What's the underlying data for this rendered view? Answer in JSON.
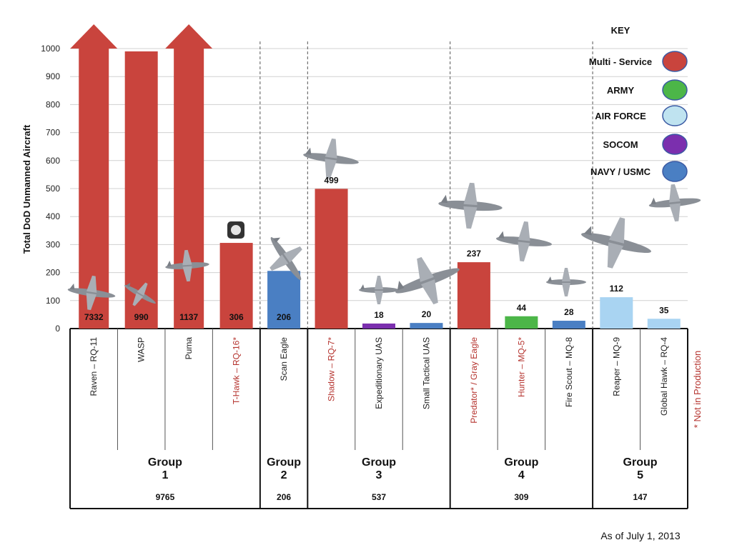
{
  "chart_data": {
    "type": "bar",
    "title": "",
    "ylabel": "Total DoD Unmanned Aircraft",
    "ylim": [
      0,
      1000
    ],
    "yticks": [
      0,
      100,
      200,
      300,
      400,
      500,
      600,
      700,
      800,
      900,
      1000
    ],
    "grid": true,
    "categories": [
      {
        "name": "Raven – RQ-11",
        "value": 7332,
        "label": "7332",
        "color": "multi",
        "not_in_production": false,
        "overflow": true
      },
      {
        "name": "WASP",
        "value": 990,
        "label": "990",
        "color": "multi",
        "not_in_production": false,
        "overflow": false
      },
      {
        "name": "Puma",
        "value": 1137,
        "label": "1137",
        "color": "multi",
        "not_in_production": false,
        "overflow": true
      },
      {
        "name": "T-Hawk – RQ-16*",
        "value": 306,
        "label": "306",
        "color": "multi",
        "not_in_production": true,
        "overflow": false
      },
      {
        "name": "Scan Eagle",
        "value": 206,
        "label": "206",
        "color": "navy",
        "not_in_production": false,
        "overflow": false
      },
      {
        "name": "Shadow – RQ-7*",
        "value": 499,
        "label": "499",
        "color": "multi",
        "not_in_production": true,
        "overflow": false
      },
      {
        "name": "Expeditionary UAS",
        "value": 18,
        "label": "18",
        "color": "socom",
        "not_in_production": false,
        "overflow": false
      },
      {
        "name": "Small Tactical UAS",
        "value": 20,
        "label": "20",
        "color": "navy",
        "not_in_production": false,
        "overflow": false
      },
      {
        "name": "Predator* / Gray Eagle",
        "value": 237,
        "label": "237",
        "color": "multi",
        "not_in_production": true,
        "overflow": false
      },
      {
        "name": "Hunter – MQ-5*",
        "value": 44,
        "label": "44",
        "color": "army",
        "not_in_production": true,
        "overflow": false
      },
      {
        "name": "Fire Scout – MQ-8",
        "value": 28,
        "label": "28",
        "color": "navy",
        "not_in_production": false,
        "overflow": false
      },
      {
        "name": "Reaper – MQ-9",
        "value": 112,
        "label": "112",
        "color": "airforce",
        "not_in_production": false,
        "overflow": false
      },
      {
        "name": "Global Hawk – RQ-4",
        "value": 35,
        "label": "35",
        "color": "airforce",
        "not_in_production": false,
        "overflow": false
      }
    ],
    "groups": [
      {
        "label": "Group",
        "number": "1",
        "total": "9765",
        "start": 0,
        "end": 3
      },
      {
        "label": "Group",
        "number": "2",
        "total": "206",
        "start": 4,
        "end": 4
      },
      {
        "label": "Group",
        "number": "3",
        "total": "537",
        "start": 5,
        "end": 7
      },
      {
        "label": "Group",
        "number": "4",
        "total": "309",
        "start": 8,
        "end": 10
      },
      {
        "label": "Group",
        "number": "5",
        "total": "147",
        "start": 11,
        "end": 12
      }
    ],
    "legend": {
      "title": "KEY",
      "placement": "top-right",
      "items": [
        {
          "key": "multi",
          "label": "Multi - Service",
          "color": "#c9443d"
        },
        {
          "key": "army",
          "label": "ARMY",
          "color": "#4cb648"
        },
        {
          "key": "airforce",
          "label": "AIR FORCE",
          "color": "#bfe3f0"
        },
        {
          "key": "socom",
          "label": "SOCOM",
          "color": "#7b2fae"
        },
        {
          "key": "navy",
          "label": "NAVY / USMC",
          "color": "#4a7fc3"
        }
      ]
    },
    "bar_colors": {
      "multi": "#c9443d",
      "army": "#4cb648",
      "airforce": "#a9d4f2",
      "socom": "#7b2fae",
      "navy": "#4a7fc3"
    },
    "not_in_production_color": "#b5332e",
    "note": "* Not in Production",
    "date": "As of July 1, 2013"
  }
}
